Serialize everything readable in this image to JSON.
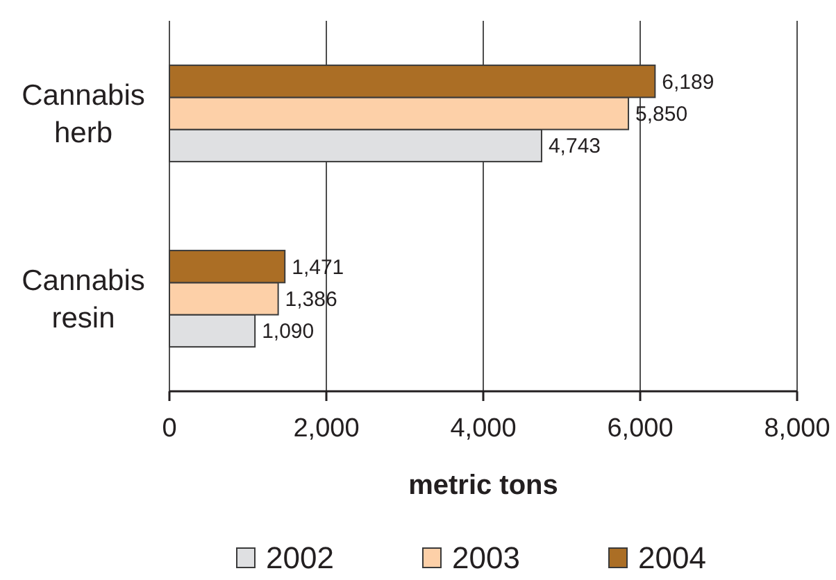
{
  "chart_data": {
    "type": "bar",
    "orientation": "horizontal",
    "categories": [
      "Cannabis herb",
      "Cannabis resin"
    ],
    "series": [
      {
        "name": "2002",
        "color": "#dfe0e2",
        "values": [
          4743,
          1090
        ],
        "value_labels": [
          "4,743",
          "1,090"
        ]
      },
      {
        "name": "2003",
        "color": "#fdd0a8",
        "values": [
          5850,
          1386
        ],
        "value_labels": [
          "5,850",
          "1,386"
        ]
      },
      {
        "name": "2004",
        "color": "#ab6e25",
        "values": [
          6189,
          1471
        ],
        "value_labels": [
          "6,189",
          "1,471"
        ]
      }
    ],
    "xlabel": "metric tons",
    "xlim": [
      0,
      8000
    ],
    "xticks": [
      0,
      {
        "value": 2000,
        "label": "2,000"
      },
      {
        "value": 4000,
        "label": "4,000"
      },
      {
        "value": 6000,
        "label": "6,000"
      },
      {
        "value": 8000,
        "label": "8,000"
      }
    ],
    "grid": "x",
    "legend": "bottom"
  }
}
